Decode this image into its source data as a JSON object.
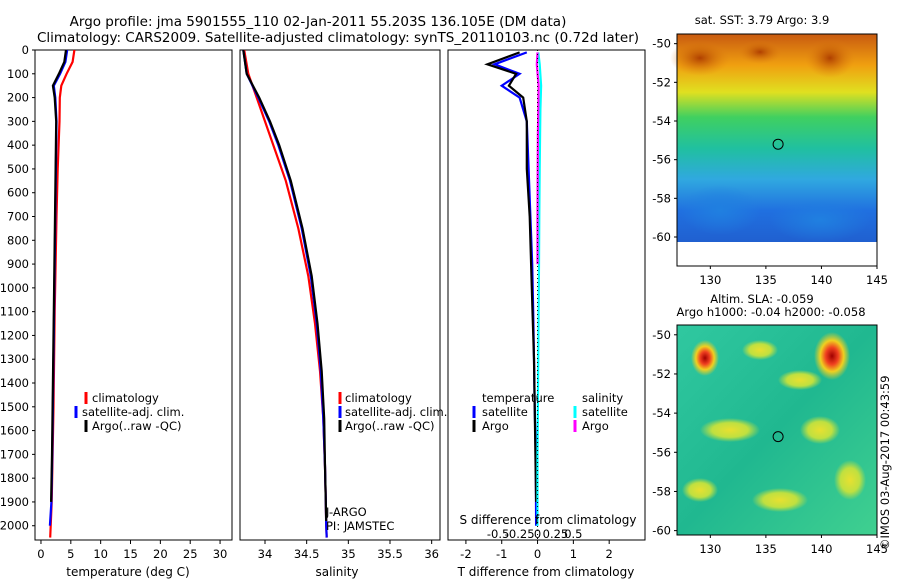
{
  "title_line1": "Argo profile: jma 5901555_110 02-Jan-2011 55.203S 136.105E (DM data)",
  "title_line2": "Climatology: CARS2009. Satellite-adjusted climatology: synTS_20110103.nc (0.72d later)",
  "watermark": "©IMOS 03-Aug-2017 00:43:59",
  "colors": {
    "climatology": "#ff0000",
    "satellite": "#0000ff",
    "argo": "#000000",
    "salinity_satellite": "#00ffff",
    "salinity_argo": "#ff00ff",
    "marker": "#000000"
  },
  "chart_data": [
    {
      "type": "line",
      "name": "temperature",
      "xlabel": "temperature (deg C)",
      "ylabel": "",
      "xlim": [
        -1,
        32
      ],
      "ylim": [
        2060,
        0
      ],
      "x_ticks": [
        0,
        5,
        10,
        15,
        20,
        25,
        30
      ],
      "y_ticks": [
        0,
        100,
        200,
        300,
        400,
        500,
        600,
        700,
        800,
        900,
        1000,
        1100,
        1200,
        1300,
        1400,
        1500,
        1600,
        1700,
        1800,
        1900,
        2000
      ],
      "legend": [
        "climatology",
        "satellite-adj. clim.",
        "Argo(..raw -QC)"
      ],
      "legend_position": "center-right",
      "series": [
        {
          "name": "climatology",
          "color": "#ff0000",
          "x": [
            5.6,
            5.3,
            4.3,
            3.4,
            3.15,
            3.1,
            2.8,
            2.6,
            2.45,
            2.3,
            2.2,
            2.1,
            1.95,
            1.8,
            1.55
          ],
          "y": [
            0,
            50,
            100,
            150,
            200,
            300,
            500,
            700,
            900,
            1100,
            1300,
            1500,
            1700,
            1900,
            2050
          ]
        },
        {
          "name": "satellite",
          "color": "#0000ff",
          "x": [
            4.4,
            4.1,
            3.2,
            2.15,
            2.4,
            2.6,
            2.5,
            2.4,
            2.3,
            2.2,
            2.1,
            2.0,
            1.9,
            1.75,
            1.5
          ],
          "y": [
            0,
            50,
            100,
            150,
            200,
            300,
            500,
            700,
            900,
            1100,
            1300,
            1500,
            1700,
            1900,
            2000
          ]
        },
        {
          "name": "Argo",
          "color": "#000000",
          "x": [
            4.2,
            3.9,
            3.0,
            2.0,
            2.3,
            2.55,
            2.45,
            2.35,
            2.25,
            2.15,
            2.05,
            1.95,
            1.85,
            1.7
          ],
          "y": [
            0,
            50,
            100,
            150,
            200,
            300,
            500,
            700,
            900,
            1100,
            1300,
            1500,
            1700,
            1900
          ]
        }
      ]
    },
    {
      "type": "line",
      "name": "salinity",
      "xlabel": "salinity",
      "xlim": [
        33.7,
        36.1
      ],
      "ylim": [
        2060,
        0
      ],
      "x_ticks": [
        34,
        34.5,
        35,
        35.5,
        36
      ],
      "legend": [
        "climatology",
        "satellite-adj. clim.",
        "Argo(..raw -QC)"
      ],
      "legend_position": "center-right",
      "annotations": [
        "J-ARGO",
        "PI: JAMSTEC"
      ],
      "series": [
        {
          "name": "climatology",
          "color": "#ff0000",
          "x": [
            33.75,
            33.8,
            33.9,
            34.0,
            34.1,
            34.25,
            34.4,
            34.52,
            34.6,
            34.66,
            34.7,
            34.72,
            34.73,
            34.735,
            34.74
          ],
          "y": [
            0,
            100,
            200,
            300,
            400,
            550,
            750,
            950,
            1150,
            1350,
            1550,
            1750,
            1900,
            2000,
            2050
          ]
        },
        {
          "name": "satellite",
          "color": "#0000ff",
          "x": [
            33.74,
            33.78,
            33.92,
            34.05,
            34.16,
            34.3,
            34.44,
            34.55,
            34.62,
            34.67,
            34.7,
            34.72,
            34.73,
            34.735,
            34.74
          ],
          "y": [
            0,
            100,
            200,
            300,
            400,
            550,
            750,
            950,
            1150,
            1350,
            1550,
            1750,
            1900,
            2000,
            2050
          ]
        },
        {
          "name": "Argo",
          "color": "#000000",
          "x": [
            33.74,
            33.78,
            33.93,
            34.06,
            34.17,
            34.31,
            34.45,
            34.56,
            34.63,
            34.68,
            34.71,
            34.72,
            34.73,
            34.735
          ],
          "y": [
            0,
            100,
            200,
            300,
            400,
            550,
            750,
            950,
            1150,
            1350,
            1550,
            1750,
            1900,
            1980
          ]
        }
      ]
    },
    {
      "type": "line",
      "name": "difference",
      "xlabel": "T difference from climatology",
      "xlabel_top": "S difference from climatology",
      "xlim": [
        -2.5,
        3
      ],
      "ylim": [
        2060,
        0
      ],
      "x_ticks": [
        -2,
        -1,
        0,
        1,
        2
      ],
      "x_ticks_top": [
        "-0.5",
        "-0.25",
        "0",
        "0.25",
        "0.5"
      ],
      "legend_left_title": "temperature",
      "legend_right_title": "salinity",
      "legend_left": [
        "satellite",
        "Argo"
      ],
      "legend_right": [
        "satellite",
        "Argo"
      ],
      "series": [
        {
          "name": "T satellite",
          "color": "#0000ff",
          "x": [
            -0.3,
            -1.2,
            -0.5,
            -1.0,
            -0.5,
            -0.3,
            -0.25,
            -0.2,
            -0.15,
            -0.12,
            -0.1,
            -0.08,
            -0.05,
            -0.04
          ],
          "y": [
            10,
            60,
            100,
            150,
            200,
            300,
            500,
            700,
            900,
            1100,
            1300,
            1500,
            1700,
            2000
          ]
        },
        {
          "name": "T Argo",
          "color": "#000000",
          "x": [
            -0.5,
            -1.4,
            -0.6,
            -0.8,
            -0.4,
            -0.3,
            -0.3,
            -0.22,
            -0.18,
            -0.14,
            -0.1,
            -0.08,
            -0.06,
            -0.04
          ],
          "y": [
            10,
            60,
            100,
            150,
            200,
            300,
            500,
            700,
            900,
            1100,
            1300,
            1500,
            1700,
            1900
          ]
        },
        {
          "name": "S satellite",
          "color": "#00ffff",
          "x": [
            0.02,
            0.06,
            0.1,
            0.08,
            0.07,
            0.06,
            0.05,
            0.04,
            0.03,
            0.02,
            0.01,
            0.0,
            0.0
          ],
          "y": [
            10,
            60,
            150,
            250,
            350,
            500,
            700,
            900,
            1100,
            1300,
            1500,
            1700,
            2000
          ]
        },
        {
          "name": "S Argo",
          "color": "#ff00ff",
          "x": [
            0.0,
            -0.02,
            0.03,
            0.02,
            0.01,
            0.005,
            0.0,
            0.0
          ],
          "y": [
            10,
            60,
            150,
            250,
            350,
            500,
            700,
            900
          ]
        }
      ]
    },
    {
      "type": "heatmap",
      "name": "sst_map",
      "title": "sat. SST: 3.79 Argo: 3.9",
      "xlim": [
        127,
        145
      ],
      "ylim": [
        -61.5,
        -49.5
      ],
      "x_ticks": [
        130,
        135,
        140,
        145
      ],
      "y_ticks": [
        -50,
        -52,
        -54,
        -56,
        -58,
        -60
      ],
      "marker": {
        "lon": 136.1,
        "lat": -55.2
      }
    },
    {
      "type": "heatmap",
      "name": "sla_map",
      "title_line1": "Altim. SLA: -0.059",
      "title_line2": "Argo h1000: -0.04 h2000: -0.058",
      "xlim": [
        127,
        145
      ],
      "ylim": [
        -61.5,
        -49.5
      ],
      "x_ticks": [
        130,
        135,
        140,
        145
      ],
      "y_ticks": [
        -50,
        -52,
        -54,
        -56,
        -58,
        -60
      ],
      "marker": {
        "lon": 136.1,
        "lat": -55.2
      }
    }
  ]
}
